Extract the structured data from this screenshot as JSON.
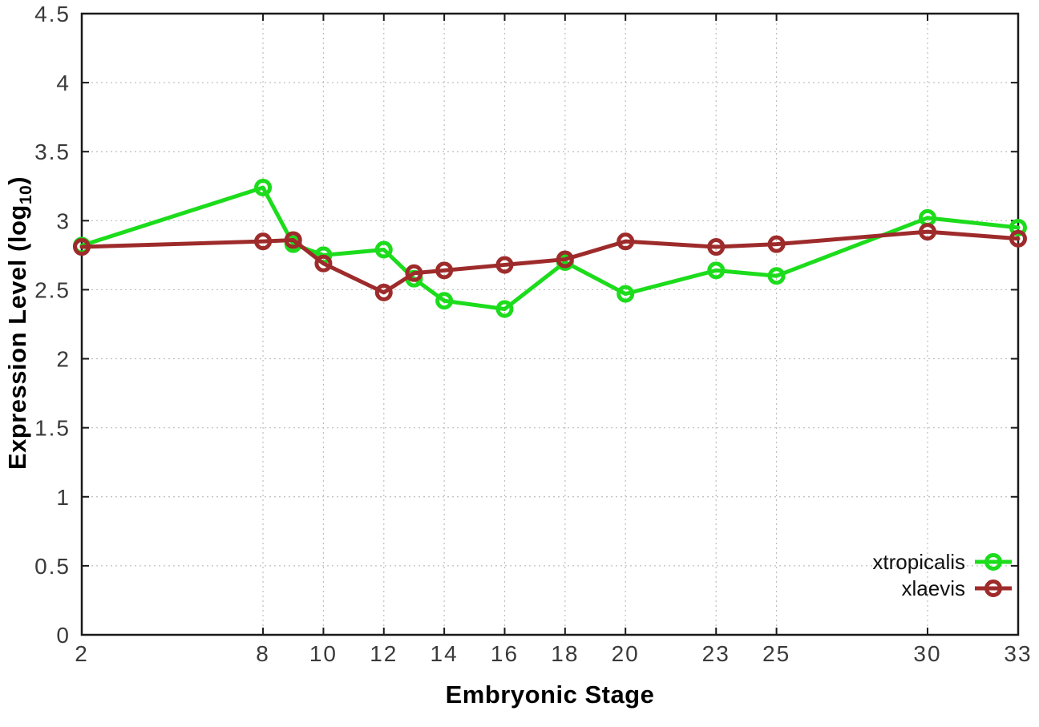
{
  "figure": {
    "background": "#ffffff"
  },
  "labels": {
    "x_title": "Embryonic Stage",
    "ylabel_prefix": "Expression Level (log",
    "ylabel_sub": "10",
    "ylabel_suffix": ")"
  },
  "style": {
    "green": "#1cdc1c",
    "dark_red": "#9e2b2b",
    "axis": "#1a1a1a",
    "grid": "#bfbfbf",
    "tick_label": "#3a3a3a",
    "legend_text": "#101010"
  },
  "chart_data": {
    "type": "line",
    "title": "",
    "xlabel": "Embryonic Stage",
    "ylabel": "Expression Level (log10)",
    "xlim": [
      2,
      33
    ],
    "ylim": [
      0,
      4.5
    ],
    "xticks": [
      2,
      8,
      10,
      12,
      14,
      16,
      18,
      20,
      23,
      25,
      30,
      33
    ],
    "yticks": [
      0,
      0.5,
      1,
      1.5,
      2,
      2.5,
      3,
      3.5,
      4,
      4.5
    ],
    "grid": true,
    "legend_position": "inside-bottom-right",
    "marker": "open-circle",
    "x": [
      2,
      8,
      9,
      10,
      12,
      13,
      14,
      16,
      18,
      20,
      23,
      25,
      30,
      33
    ],
    "series": [
      {
        "name": "xtropicalis",
        "color": "#1cdc1c",
        "values": [
          2.82,
          3.24,
          2.83,
          2.75,
          2.79,
          2.58,
          2.42,
          2.36,
          2.7,
          2.47,
          2.64,
          2.6,
          3.02,
          2.95
        ]
      },
      {
        "name": "xlaevis",
        "color": "#9e2b2b",
        "values": [
          2.81,
          2.85,
          2.86,
          2.69,
          2.48,
          2.62,
          2.64,
          2.68,
          2.72,
          2.85,
          2.81,
          2.83,
          2.92,
          2.87
        ]
      }
    ]
  }
}
